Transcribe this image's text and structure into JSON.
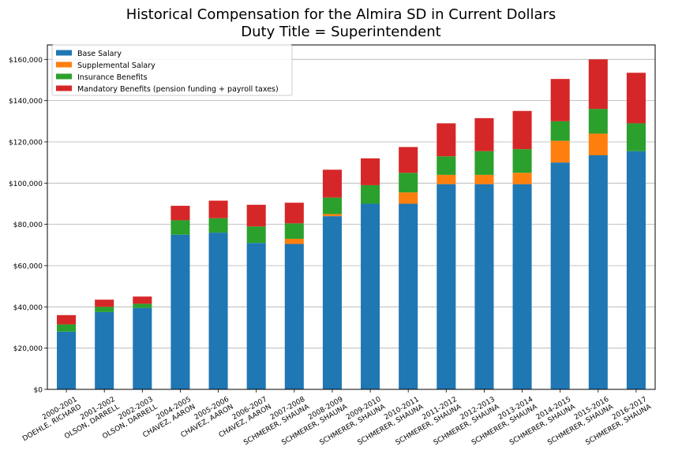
{
  "chart_data": {
    "type": "bar",
    "stacked": true,
    "title": "Historical Compensation for the Almira SD in Current Dollars",
    "subtitle": "Duty Title = Superintendent",
    "xlabel": "",
    "ylabel": "",
    "ylim": [
      0,
      167000
    ],
    "yticks": [
      0,
      20000,
      40000,
      60000,
      80000,
      100000,
      120000,
      140000,
      160000
    ],
    "ytick_labels": [
      "$0",
      "$20,000",
      "$40,000",
      "$60,000",
      "$80,000",
      "$100,000",
      "$120,000",
      "$140,000",
      "$160,000"
    ],
    "grid": "horizontal",
    "legend_position": "top-left",
    "categories": [
      [
        "2000-2001",
        "DOEHLE, RICHARD"
      ],
      [
        "2001-2002",
        "OLSON, DARRELL"
      ],
      [
        "2002-2003",
        "OLSON, DARRELL"
      ],
      [
        "2004-2005",
        "CHAVEZ, AARON"
      ],
      [
        "2005-2006",
        "CHAVEZ, AARON"
      ],
      [
        "2006-2007",
        "CHAVEZ, AARON"
      ],
      [
        "2007-2008",
        "SCHMERER, SHAUNA"
      ],
      [
        "2008-2009",
        "SCHMERER, SHAUNA"
      ],
      [
        "2009-2010",
        "SCHMERER, SHAUNA"
      ],
      [
        "2010-2011",
        "SCHMERER, SHAUNA"
      ],
      [
        "2011-2012",
        "SCHMERER, SHAUNA"
      ],
      [
        "2012-2013",
        "SCHMERER, SHAUNA"
      ],
      [
        "2013-2014",
        "SCHMERER, SHAUNA"
      ],
      [
        "2014-2015",
        "SCHMERER, SHAUNA"
      ],
      [
        "2015-2016",
        "SCHMERER, SHAUNA"
      ],
      [
        "2016-2017",
        "SCHMERER, SHAUNA"
      ]
    ],
    "series": [
      {
        "name": "Base Salary",
        "color": "#1f77b4",
        "values": [
          28000,
          37500,
          39500,
          75000,
          76000,
          71000,
          70500,
          84000,
          90000,
          90000,
          99500,
          99500,
          99500,
          110000,
          113500,
          115500
        ]
      },
      {
        "name": "Supplemental Salary",
        "color": "#ff7f0e",
        "values": [
          0,
          0,
          0,
          0,
          0,
          0,
          2500,
          1000,
          0,
          5500,
          4500,
          4500,
          5500,
          10500,
          10500,
          0
        ]
      },
      {
        "name": "Insurance Benefits",
        "color": "#2ca02c",
        "values": [
          3500,
          2500,
          2000,
          7000,
          7000,
          8000,
          7500,
          8000,
          9000,
          9500,
          9000,
          11500,
          11500,
          9500,
          12000,
          13500
        ]
      },
      {
        "name": "Mandatory Benefits (pension funding + payroll taxes)",
        "color": "#d62728",
        "values": [
          4500,
          3500,
          3500,
          7000,
          8500,
          10500,
          10000,
          13500,
          13000,
          12500,
          16000,
          16000,
          18500,
          20500,
          24000,
          24500
        ]
      }
    ]
  }
}
